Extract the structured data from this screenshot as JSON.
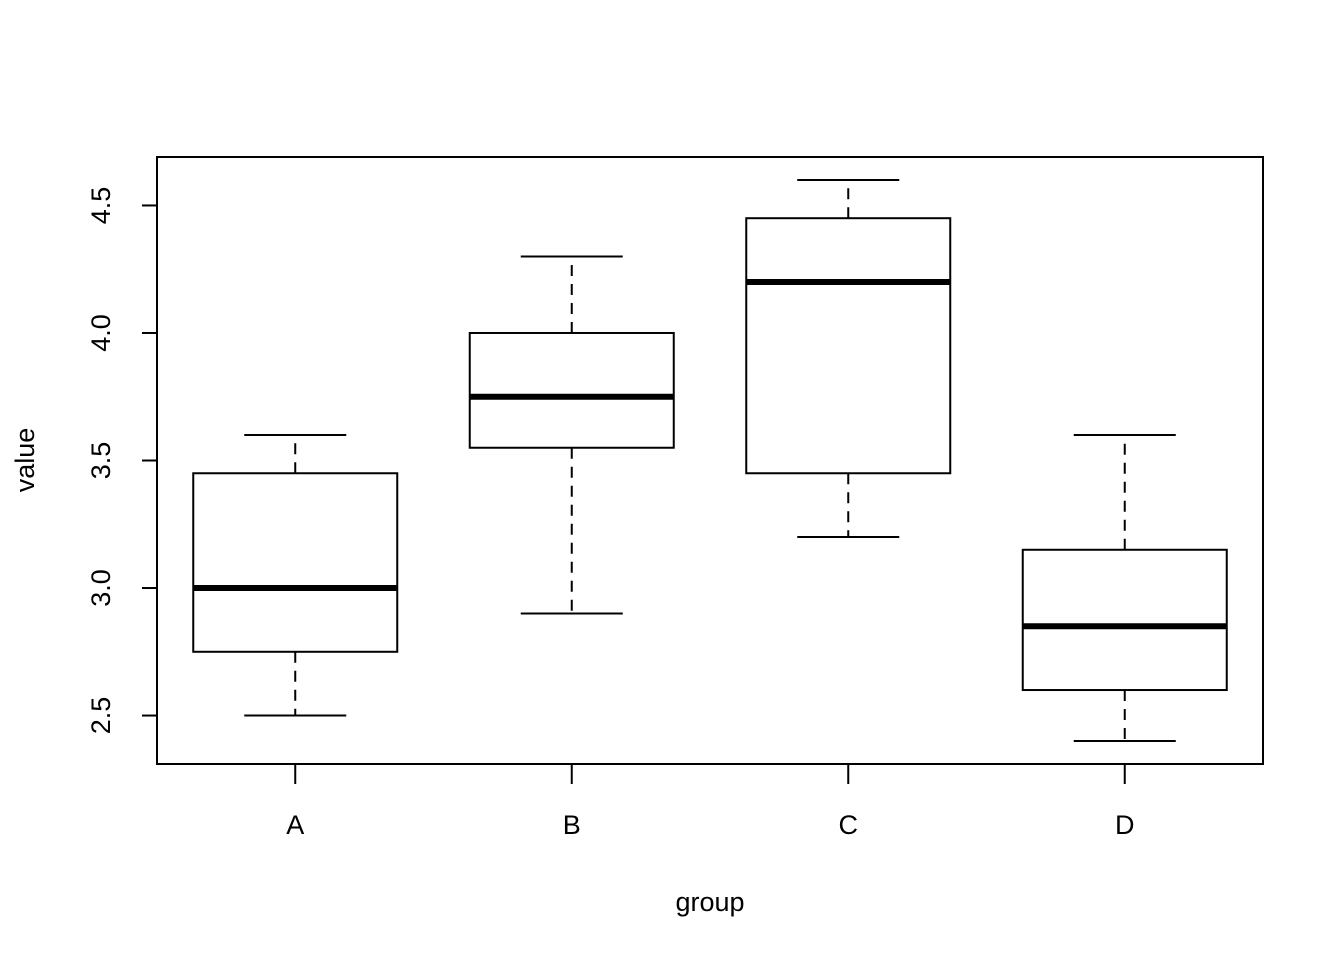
{
  "chart_data": {
    "type": "box",
    "title": "",
    "xlabel": "group",
    "ylabel": "value",
    "ylim": [
      2.31,
      4.69
    ],
    "y_ticks": [
      2.5,
      3.0,
      3.5,
      4.0,
      4.5
    ],
    "y_tick_labels": [
      "2.5",
      "3.0",
      "3.5",
      "4.0",
      "4.5"
    ],
    "categories": [
      "A",
      "B",
      "C",
      "D"
    ],
    "boxes": [
      {
        "category": "A",
        "whisker_low": 2.5,
        "q1": 2.75,
        "median": 3.0,
        "q3": 3.45,
        "whisker_high": 3.6
      },
      {
        "category": "B",
        "whisker_low": 2.9,
        "q1": 3.55,
        "median": 3.75,
        "q3": 4.0,
        "whisker_high": 4.3
      },
      {
        "category": "C",
        "whisker_low": 3.2,
        "q1": 3.45,
        "median": 4.2,
        "q3": 4.45,
        "whisker_high": 4.6
      },
      {
        "category": "D",
        "whisker_low": 2.4,
        "q1": 2.6,
        "median": 2.85,
        "q3": 3.15,
        "whisker_high": 3.6
      }
    ],
    "grid": false,
    "legend": "none",
    "colors": {
      "line": "#000000",
      "box_fill": "#ffffff",
      "background": "#ffffff"
    }
  }
}
